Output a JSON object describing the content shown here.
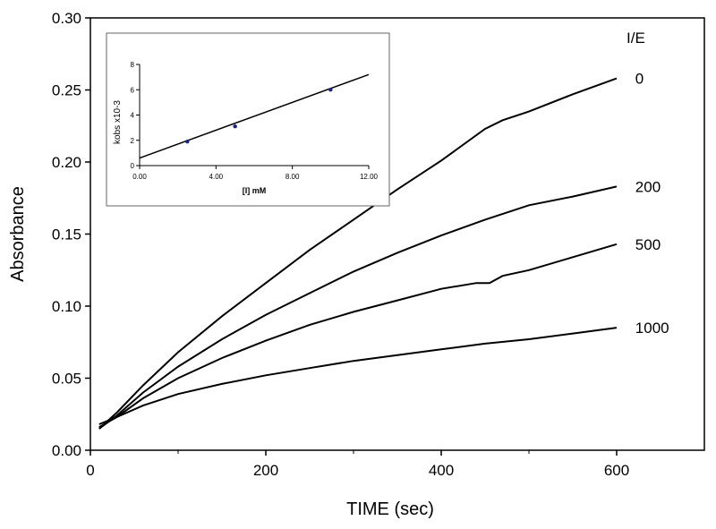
{
  "chart_data": [
    {
      "type": "line",
      "xlabel": "TIME (sec)",
      "ylabel": "Absorbance",
      "xlim": [
        0,
        700
      ],
      "ylim": [
        0,
        0.3
      ],
      "xticks": [
        0,
        200,
        400,
        600
      ],
      "yticks": [
        "0.00",
        "0.05",
        "0.10",
        "0.15",
        "0.20",
        "0.25",
        "0.30"
      ],
      "legend_title": "I/E",
      "series": [
        {
          "name": "0",
          "x": [
            10,
            30,
            60,
            100,
            150,
            200,
            250,
            300,
            350,
            400,
            450,
            470,
            500,
            550,
            600
          ],
          "y": [
            0.015,
            0.026,
            0.045,
            0.068,
            0.093,
            0.116,
            0.139,
            0.16,
            0.181,
            0.201,
            0.223,
            0.229,
            0.235,
            0.247,
            0.258
          ]
        },
        {
          "name": "200",
          "x": [
            10,
            30,
            60,
            100,
            150,
            200,
            250,
            300,
            350,
            400,
            450,
            500,
            550,
            600
          ],
          "y": [
            0.015,
            0.024,
            0.04,
            0.058,
            0.077,
            0.094,
            0.109,
            0.124,
            0.137,
            0.149,
            0.16,
            0.17,
            0.176,
            0.183
          ]
        },
        {
          "name": "500",
          "x": [
            10,
            30,
            60,
            100,
            150,
            200,
            250,
            300,
            350,
            400,
            440,
            455,
            470,
            500,
            550,
            600
          ],
          "y": [
            0.016,
            0.023,
            0.036,
            0.05,
            0.064,
            0.076,
            0.087,
            0.096,
            0.104,
            0.112,
            0.116,
            0.116,
            0.121,
            0.125,
            0.134,
            0.143
          ]
        },
        {
          "name": "1000",
          "x": [
            10,
            30,
            60,
            100,
            150,
            200,
            250,
            300,
            350,
            400,
            450,
            500,
            550,
            600
          ],
          "y": [
            0.018,
            0.023,
            0.031,
            0.039,
            0.046,
            0.052,
            0.057,
            0.062,
            0.066,
            0.07,
            0.074,
            0.077,
            0.081,
            0.085
          ]
        }
      ]
    },
    {
      "type": "scatter",
      "xlabel": "[I] mM",
      "ylabel": "kobs  x10-3",
      "xlim": [
        0,
        12
      ],
      "ylim": [
        0,
        8
      ],
      "xticks": [
        "0.00",
        "4.00",
        "8.00",
        "12.00"
      ],
      "yticks": [
        0,
        2,
        4,
        6,
        8
      ],
      "points": {
        "x": [
          2.5,
          5,
          10
        ],
        "y": [
          1.9,
          3.1,
          6.0
        ]
      },
      "fit_line": {
        "x": [
          0,
          12
        ],
        "y": [
          0.6,
          7.2
        ]
      }
    }
  ]
}
